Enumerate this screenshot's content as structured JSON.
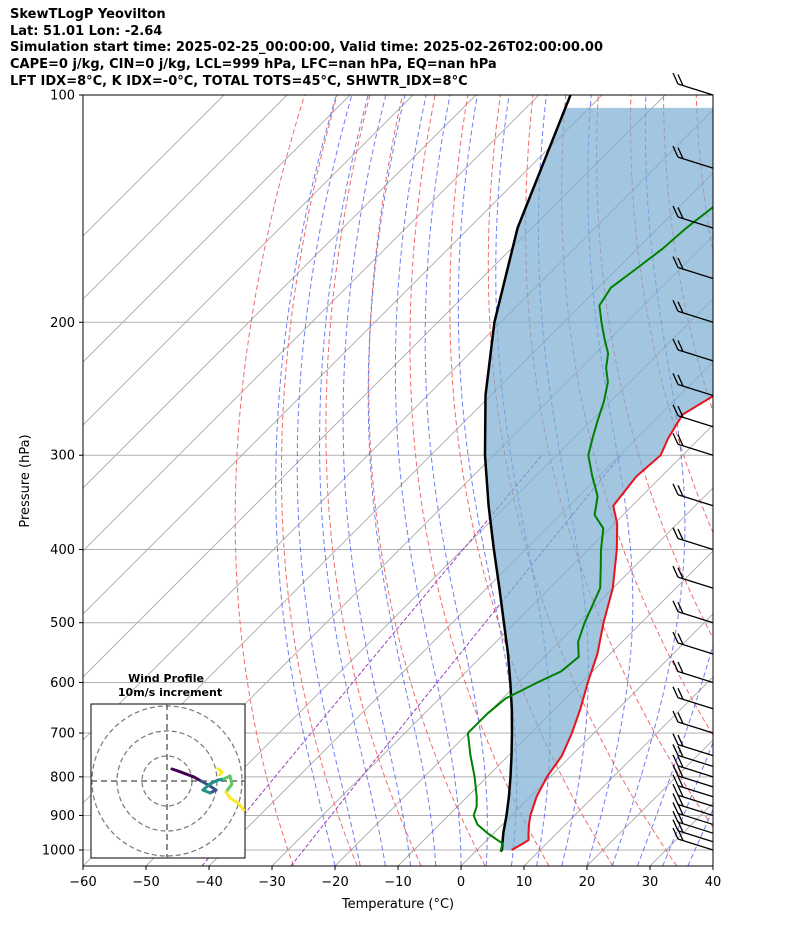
{
  "header": {
    "line1": "SkewTLogP Yeovilton",
    "line2": "Lat: 51.01   Lon: -2.64",
    "line3": "Simulation start time: 2025-02-25_00:00:00, Valid time: 2025-02-26T02:00:00.00",
    "line4": "CAPE=0 j/kg, CIN=0 j/kg, LCL=999 hPa, LFC=nan hPa, EQ=nan hPa",
    "line5": "LFT IDX=8°C, K IDX=-0°C, TOTAL TOTS=45°C, SHWTR_IDX=8°C"
  },
  "chart_data": {
    "type": "line",
    "subtype": "skew-T log-P",
    "xlabel": "Temperature (°C)",
    "ylabel": "Pressure (hPa)",
    "xlim": [
      -60,
      40
    ],
    "ylim": [
      1050,
      100
    ],
    "y_scale": "log",
    "x_ticks": [
      "−60",
      "−50",
      "−40",
      "−30",
      "−20",
      "−10",
      "0",
      "10",
      "20",
      "30",
      "40"
    ],
    "y_ticks": [
      100,
      200,
      300,
      400,
      500,
      600,
      700,
      800,
      900,
      1000
    ],
    "grid": true,
    "series": [
      {
        "role": "temperature",
        "color": "#e8121a",
        "points": [
          [
            1000,
            5.5
          ],
          [
            980,
            6.3
          ],
          [
            970,
            6.6
          ],
          [
            950,
            5.5
          ],
          [
            925,
            4.2
          ],
          [
            900,
            3.0
          ],
          [
            850,
            1.0
          ],
          [
            800,
            -0.5
          ],
          [
            750,
            -1.5
          ],
          [
            700,
            -3.5
          ],
          [
            650,
            -6.0
          ],
          [
            600,
            -9.0
          ],
          [
            550,
            -12.0
          ],
          [
            500,
            -16.0
          ],
          [
            450,
            -20.0
          ],
          [
            400,
            -25.5
          ],
          [
            370,
            -29.5
          ],
          [
            350,
            -33.0
          ],
          [
            320,
            -34.0
          ],
          [
            300,
            -33.5
          ],
          [
            285,
            -35.0
          ],
          [
            265,
            -36.5
          ],
          [
            250,
            -34.5
          ],
          [
            235,
            -32.0
          ],
          [
            225,
            -30.0
          ],
          [
            210,
            -31.0
          ],
          [
            200,
            -31.5
          ],
          [
            190,
            -30.5
          ],
          [
            180,
            -29.0
          ],
          [
            170,
            -28.0
          ],
          [
            160,
            -26.5
          ],
          [
            150,
            -25.5
          ],
          [
            140,
            -23.0
          ],
          [
            130,
            -21.5
          ],
          [
            120,
            -19.5
          ],
          [
            110,
            -20.0
          ],
          [
            105,
            -21.0
          ],
          [
            100,
            -22.0
          ]
        ]
      },
      {
        "role": "dewpoint",
        "color": "#007f00",
        "points": [
          [
            1005,
            4.0
          ],
          [
            980,
            3.0
          ],
          [
            950,
            -1.0
          ],
          [
            925,
            -4.0
          ],
          [
            900,
            -6.0
          ],
          [
            875,
            -7.0
          ],
          [
            850,
            -8.5
          ],
          [
            800,
            -12.0
          ],
          [
            750,
            -16.0
          ],
          [
            700,
            -20.0
          ],
          [
            660,
            -20.0
          ],
          [
            630,
            -19.5
          ],
          [
            600,
            -17.0
          ],
          [
            580,
            -15.0
          ],
          [
            555,
            -14.5
          ],
          [
            530,
            -17.0
          ],
          [
            500,
            -19.0
          ],
          [
            450,
            -22.0
          ],
          [
            420,
            -25.5
          ],
          [
            400,
            -28.0
          ],
          [
            375,
            -31.0
          ],
          [
            360,
            -34.5
          ],
          [
            340,
            -37.0
          ],
          [
            320,
            -41.0
          ],
          [
            300,
            -45.0
          ],
          [
            285,
            -47.0
          ],
          [
            270,
            -49.0
          ],
          [
            255,
            -51.0
          ],
          [
            240,
            -53.5
          ],
          [
            230,
            -56.0
          ],
          [
            220,
            -58.0
          ],
          [
            210,
            -61.0
          ],
          [
            200,
            -64.0
          ],
          [
            190,
            -67.0
          ],
          [
            180,
            -68.0
          ],
          [
            170,
            -67.0
          ],
          [
            160,
            -66.0
          ],
          [
            150,
            -65.5
          ],
          [
            140,
            -64.5
          ],
          [
            130,
            -64.0
          ],
          [
            120,
            -63.5
          ],
          [
            110,
            -63.0
          ],
          [
            100,
            -62.5
          ]
        ]
      },
      {
        "role": "parcel",
        "color": "#000000",
        "points": [
          [
            1005,
            4.0
          ],
          [
            999,
            3.9
          ],
          [
            950,
            1.5
          ],
          [
            900,
            -0.8
          ],
          [
            850,
            -3.4
          ],
          [
            800,
            -6.3
          ],
          [
            750,
            -9.5
          ],
          [
            700,
            -13.0
          ],
          [
            650,
            -16.9
          ],
          [
            600,
            -21.3
          ],
          [
            550,
            -26.2
          ],
          [
            500,
            -31.8
          ],
          [
            450,
            -38.0
          ],
          [
            400,
            -45.0
          ],
          [
            350,
            -52.8
          ],
          [
            300,
            -61.4
          ],
          [
            250,
            -70.8
          ],
          [
            200,
            -81.0
          ],
          [
            150,
            -92.3
          ],
          [
            100,
            -105.0
          ]
        ]
      }
    ],
    "wind_barbs": {
      "color": "#000000",
      "pressures": [
        1000,
        975,
        950,
        925,
        900,
        875,
        850,
        825,
        800,
        775,
        750,
        700,
        650,
        600,
        550,
        500,
        450,
        400,
        350,
        300,
        275,
        250,
        225,
        200,
        175,
        150,
        125,
        100
      ]
    },
    "inset": {
      "title_line1": "Wind Profile",
      "title_line2": "10m/s increment",
      "colormap": [
        "#440154",
        "#3b528b",
        "#21918c",
        "#5ec962",
        "#fde725"
      ]
    }
  }
}
